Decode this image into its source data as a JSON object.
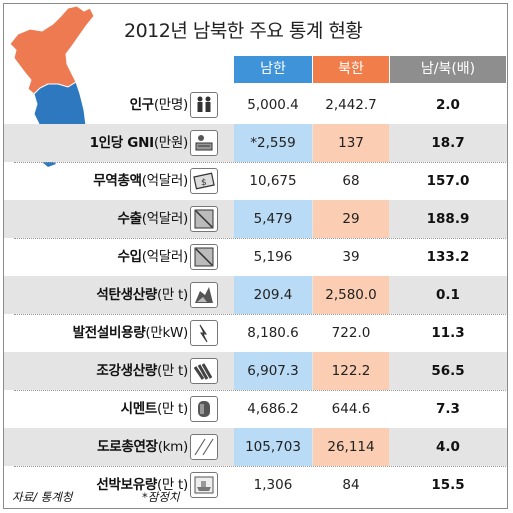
{
  "title": "2012년 남북한 주요 통계 현황",
  "header": {
    "south": "남한",
    "north": "북한",
    "ratio": "남/북(배)"
  },
  "colors": {
    "south": "#3f93d8",
    "north": "#f07d4a",
    "ratio": "#8e8e8e",
    "south_light": "#b9dbf6",
    "north_light": "#fbcdb2",
    "map_north": "#ee7a52",
    "map_south": "#2e78c0"
  },
  "source": "자료/ 통계청",
  "note": "*잠정치",
  "chart_data": {
    "type": "table",
    "title": "2012년 남북한 주요 통계 현황",
    "columns": [
      "남한",
      "북한",
      "남/북(배)"
    ],
    "rows": [
      {
        "name": "인구",
        "unit": "(만명)",
        "icon": "people-icon",
        "south": "5,000.4",
        "north": "2,442.7",
        "ratio": "2.0",
        "hl": false
      },
      {
        "name": "1인당 GNI",
        "unit": "(만원)",
        "icon": "money-icon",
        "south": "*2,559",
        "north": "137",
        "ratio": "18.7",
        "hl": true
      },
      {
        "name": "무역총액",
        "unit": "(억달러)",
        "icon": "banknote-icon",
        "south": "10,675",
        "north": "68",
        "ratio": "157.0",
        "hl": false
      },
      {
        "name": "수출",
        "unit": "(억달러)",
        "icon": "export-icon",
        "south": "5,479",
        "north": "29",
        "ratio": "188.9",
        "hl": true
      },
      {
        "name": "수입",
        "unit": "(억달러)",
        "icon": "import-icon",
        "south": "5,196",
        "north": "39",
        "ratio": "133.2",
        "hl": false
      },
      {
        "name": "석탄생산량",
        "unit": "(만 t)",
        "icon": "coal-icon",
        "south": "209.4",
        "north": "2,580.0",
        "ratio": "0.1",
        "hl": true
      },
      {
        "name": "발전설비용량",
        "unit": "(만kW)",
        "icon": "power-icon",
        "south": "8,180.6",
        "north": "722.0",
        "ratio": "11.3",
        "hl": false
      },
      {
        "name": "조강생산량",
        "unit": "(만 t)",
        "icon": "steel-icon",
        "south": "6,907.3",
        "north": "122.2",
        "ratio": "56.5",
        "hl": true
      },
      {
        "name": "시멘트",
        "unit": "(만 t)",
        "icon": "cement-icon",
        "south": "4,686.2",
        "north": "644.6",
        "ratio": "7.3",
        "hl": false
      },
      {
        "name": "도로총연장",
        "unit": "(km)",
        "icon": "road-icon",
        "south": "105,703",
        "north": "26,114",
        "ratio": "4.0",
        "hl": true
      },
      {
        "name": "선박보유량",
        "unit": "(만 t)",
        "icon": "ship-icon",
        "south": "1,306",
        "north": "84",
        "ratio": "15.5",
        "hl": false
      }
    ]
  }
}
